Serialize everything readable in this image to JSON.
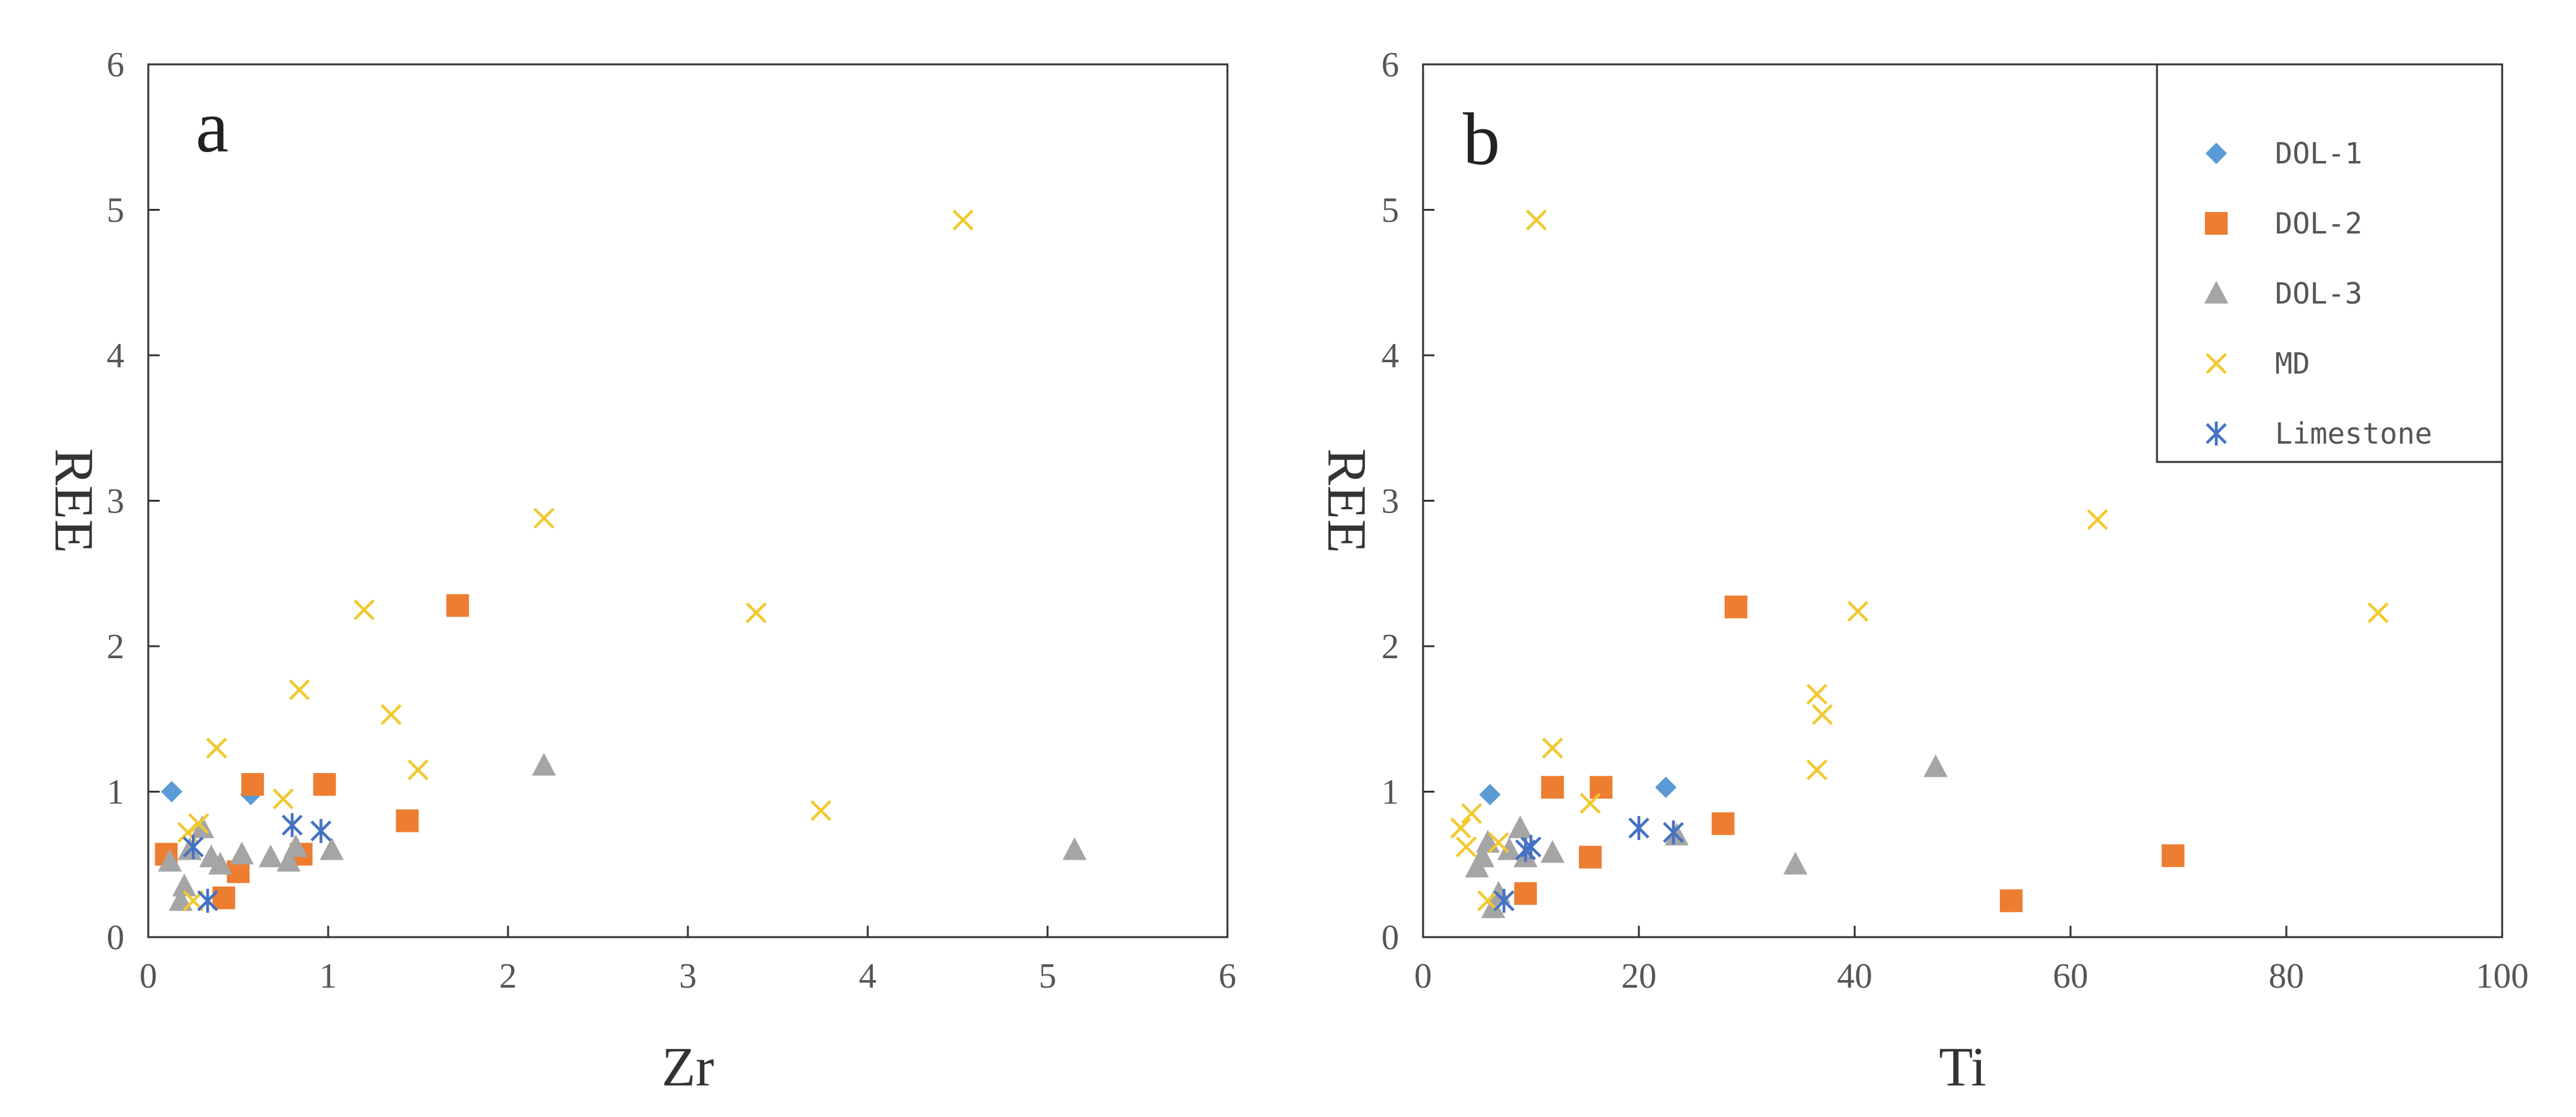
{
  "colors": {
    "DOL-1": "#5b9bd5",
    "DOL-2": "#ed7d31",
    "DOL-3": "#a5a5a5",
    "MD": "#f2c82e",
    "Limestone": "#4472c4"
  },
  "legend": {
    "placement": "top-right of panel b",
    "entries": [
      "DOL-1",
      "DOL-2",
      "DOL-3",
      "MD",
      "Limestone"
    ]
  },
  "chart_data": [
    {
      "type": "scatter",
      "panel_label": "a",
      "xlabel": "Zr",
      "ylabel": "REE",
      "xlim": [
        0,
        6
      ],
      "ylim": [
        0,
        6
      ],
      "xticks": [
        "0",
        "1",
        "2",
        "3",
        "4",
        "5",
        "6"
      ],
      "yticks": [
        "0",
        "1",
        "2",
        "3",
        "4",
        "5",
        "6"
      ],
      "grid": false,
      "series": [
        {
          "name": "DOL-1",
          "marker": "diamond",
          "points": [
            [
              0.13,
              1.0
            ],
            [
              0.57,
              0.98
            ]
          ]
        },
        {
          "name": "DOL-2",
          "marker": "square",
          "points": [
            [
              0.1,
              0.57
            ],
            [
              0.42,
              0.27
            ],
            [
              0.5,
              0.45
            ],
            [
              0.58,
              1.05
            ],
            [
              0.85,
              0.57
            ],
            [
              0.98,
              1.05
            ],
            [
              1.44,
              0.8
            ],
            [
              1.72,
              2.28
            ]
          ]
        },
        {
          "name": "DOL-3",
          "marker": "triangle",
          "points": [
            [
              0.12,
              0.52
            ],
            [
              0.18,
              0.25
            ],
            [
              0.2,
              0.35
            ],
            [
              0.23,
              0.6
            ],
            [
              0.3,
              0.75
            ],
            [
              0.35,
              0.55
            ],
            [
              0.4,
              0.5
            ],
            [
              0.52,
              0.57
            ],
            [
              0.68,
              0.55
            ],
            [
              0.78,
              0.52
            ],
            [
              0.82,
              0.62
            ],
            [
              1.02,
              0.6
            ],
            [
              2.2,
              1.18
            ],
            [
              5.15,
              0.6
            ]
          ]
        },
        {
          "name": "MD",
          "marker": "x",
          "points": [
            [
              0.22,
              0.72
            ],
            [
              0.25,
              0.25
            ],
            [
              0.28,
              0.78
            ],
            [
              0.38,
              1.3
            ],
            [
              0.75,
              0.95
            ],
            [
              0.84,
              1.7
            ],
            [
              1.2,
              2.25
            ],
            [
              1.35,
              1.53
            ],
            [
              1.5,
              1.15
            ],
            [
              2.2,
              2.88
            ],
            [
              3.38,
              2.23
            ],
            [
              3.74,
              0.87
            ],
            [
              4.53,
              4.93
            ]
          ]
        },
        {
          "name": "Limestone",
          "marker": "asterisk",
          "points": [
            [
              0.25,
              0.62
            ],
            [
              0.33,
              0.25
            ],
            [
              0.8,
              0.77
            ],
            [
              0.96,
              0.73
            ]
          ]
        }
      ]
    },
    {
      "type": "scatter",
      "panel_label": "b",
      "xlabel": "Ti",
      "ylabel": "REE",
      "xlim": [
        0,
        100
      ],
      "ylim": [
        0,
        6
      ],
      "xticks": [
        "0",
        "20",
        "40",
        "60",
        "80",
        "100"
      ],
      "yticks": [
        "0",
        "1",
        "2",
        "3",
        "4",
        "5",
        "6"
      ],
      "grid": false,
      "series": [
        {
          "name": "DOL-1",
          "marker": "diamond",
          "points": [
            [
              6.2,
              0.98
            ],
            [
              22.5,
              1.03
            ]
          ]
        },
        {
          "name": "DOL-2",
          "marker": "square",
          "points": [
            [
              9.5,
              0.3
            ],
            [
              12.0,
              1.03
            ],
            [
              15.5,
              0.55
            ],
            [
              16.5,
              1.03
            ],
            [
              27.8,
              0.78
            ],
            [
              29.0,
              2.27
            ],
            [
              54.5,
              0.25
            ],
            [
              69.5,
              0.56
            ]
          ]
        },
        {
          "name": "DOL-3",
          "marker": "triangle",
          "points": [
            [
              5.0,
              0.48
            ],
            [
              5.5,
              0.55
            ],
            [
              6.0,
              0.65
            ],
            [
              6.5,
              0.2
            ],
            [
              7.0,
              0.3
            ],
            [
              8.0,
              0.6
            ],
            [
              9.0,
              0.75
            ],
            [
              9.5,
              0.55
            ],
            [
              12.0,
              0.58
            ],
            [
              23.5,
              0.7
            ],
            [
              34.5,
              0.5
            ],
            [
              47.5,
              1.17
            ]
          ]
        },
        {
          "name": "MD",
          "marker": "x",
          "points": [
            [
              3.5,
              0.75
            ],
            [
              4.0,
              0.62
            ],
            [
              4.5,
              0.85
            ],
            [
              6.0,
              0.25
            ],
            [
              7.0,
              0.65
            ],
            [
              10.5,
              4.93
            ],
            [
              12.0,
              1.3
            ],
            [
              15.5,
              0.92
            ],
            [
              36.5,
              1.15
            ],
            [
              36.5,
              1.67
            ],
            [
              37.0,
              1.53
            ],
            [
              40.3,
              2.24
            ],
            [
              62.5,
              2.87
            ],
            [
              88.5,
              2.23
            ]
          ]
        },
        {
          "name": "Limestone",
          "marker": "asterisk",
          "points": [
            [
              7.5,
              0.25
            ],
            [
              9.5,
              0.6
            ],
            [
              10.0,
              0.62
            ],
            [
              20.0,
              0.75
            ],
            [
              23.2,
              0.72
            ]
          ]
        }
      ]
    }
  ]
}
